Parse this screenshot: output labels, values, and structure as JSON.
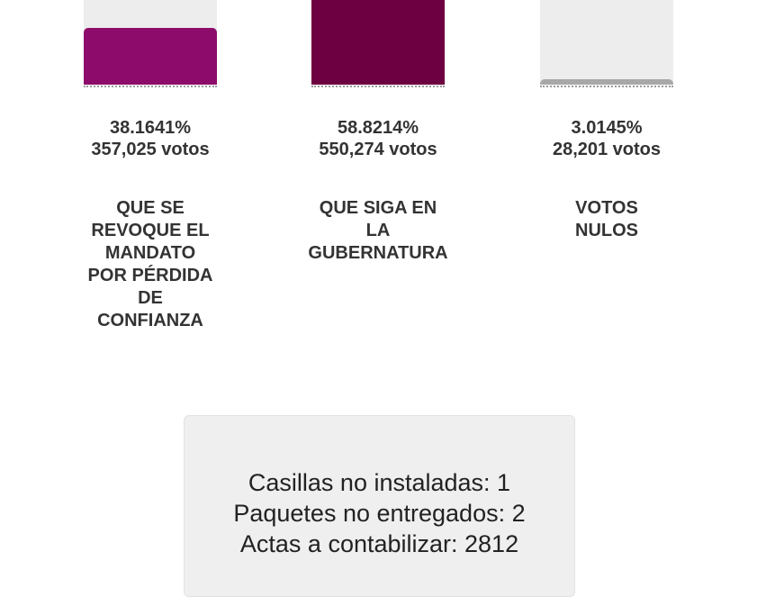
{
  "chart_data": {
    "type": "bar",
    "categories": [
      "QUE SE REVOQUE EL MANDATO POR PÉRDIDA DE CONFIANZA",
      "QUE SIGA EN LA GUBERNATURA",
      "VOTOS NULOS"
    ],
    "label_lines": [
      [
        "QUE SE",
        "REVOQUE EL",
        "MANDATO",
        "POR PÉRDIDA",
        "DE",
        "CONFIANZA"
      ],
      [
        "QUE SIGA EN",
        "LA",
        "GUBERNATURA"
      ],
      [
        "VOTOS",
        "NULOS"
      ]
    ],
    "values": [
      38.1641,
      58.8214,
      3.0145
    ],
    "percent_labels": [
      "38.1641%",
      "58.8214%",
      "3.0145%"
    ],
    "vote_labels": [
      "357,025 votos",
      "550,274 votos",
      "28,201 votos"
    ],
    "votes": [
      357025,
      550274,
      28201
    ],
    "colors": [
      "#8d0b6b",
      "#6d0040",
      "#a8a8a8"
    ],
    "ylim": [
      0,
      100
    ]
  },
  "summary": {
    "lines": [
      "Casillas no instaladas: 1",
      "Paquetes no entregados: 2",
      "Actas a contabilizar: 2812"
    ]
  }
}
